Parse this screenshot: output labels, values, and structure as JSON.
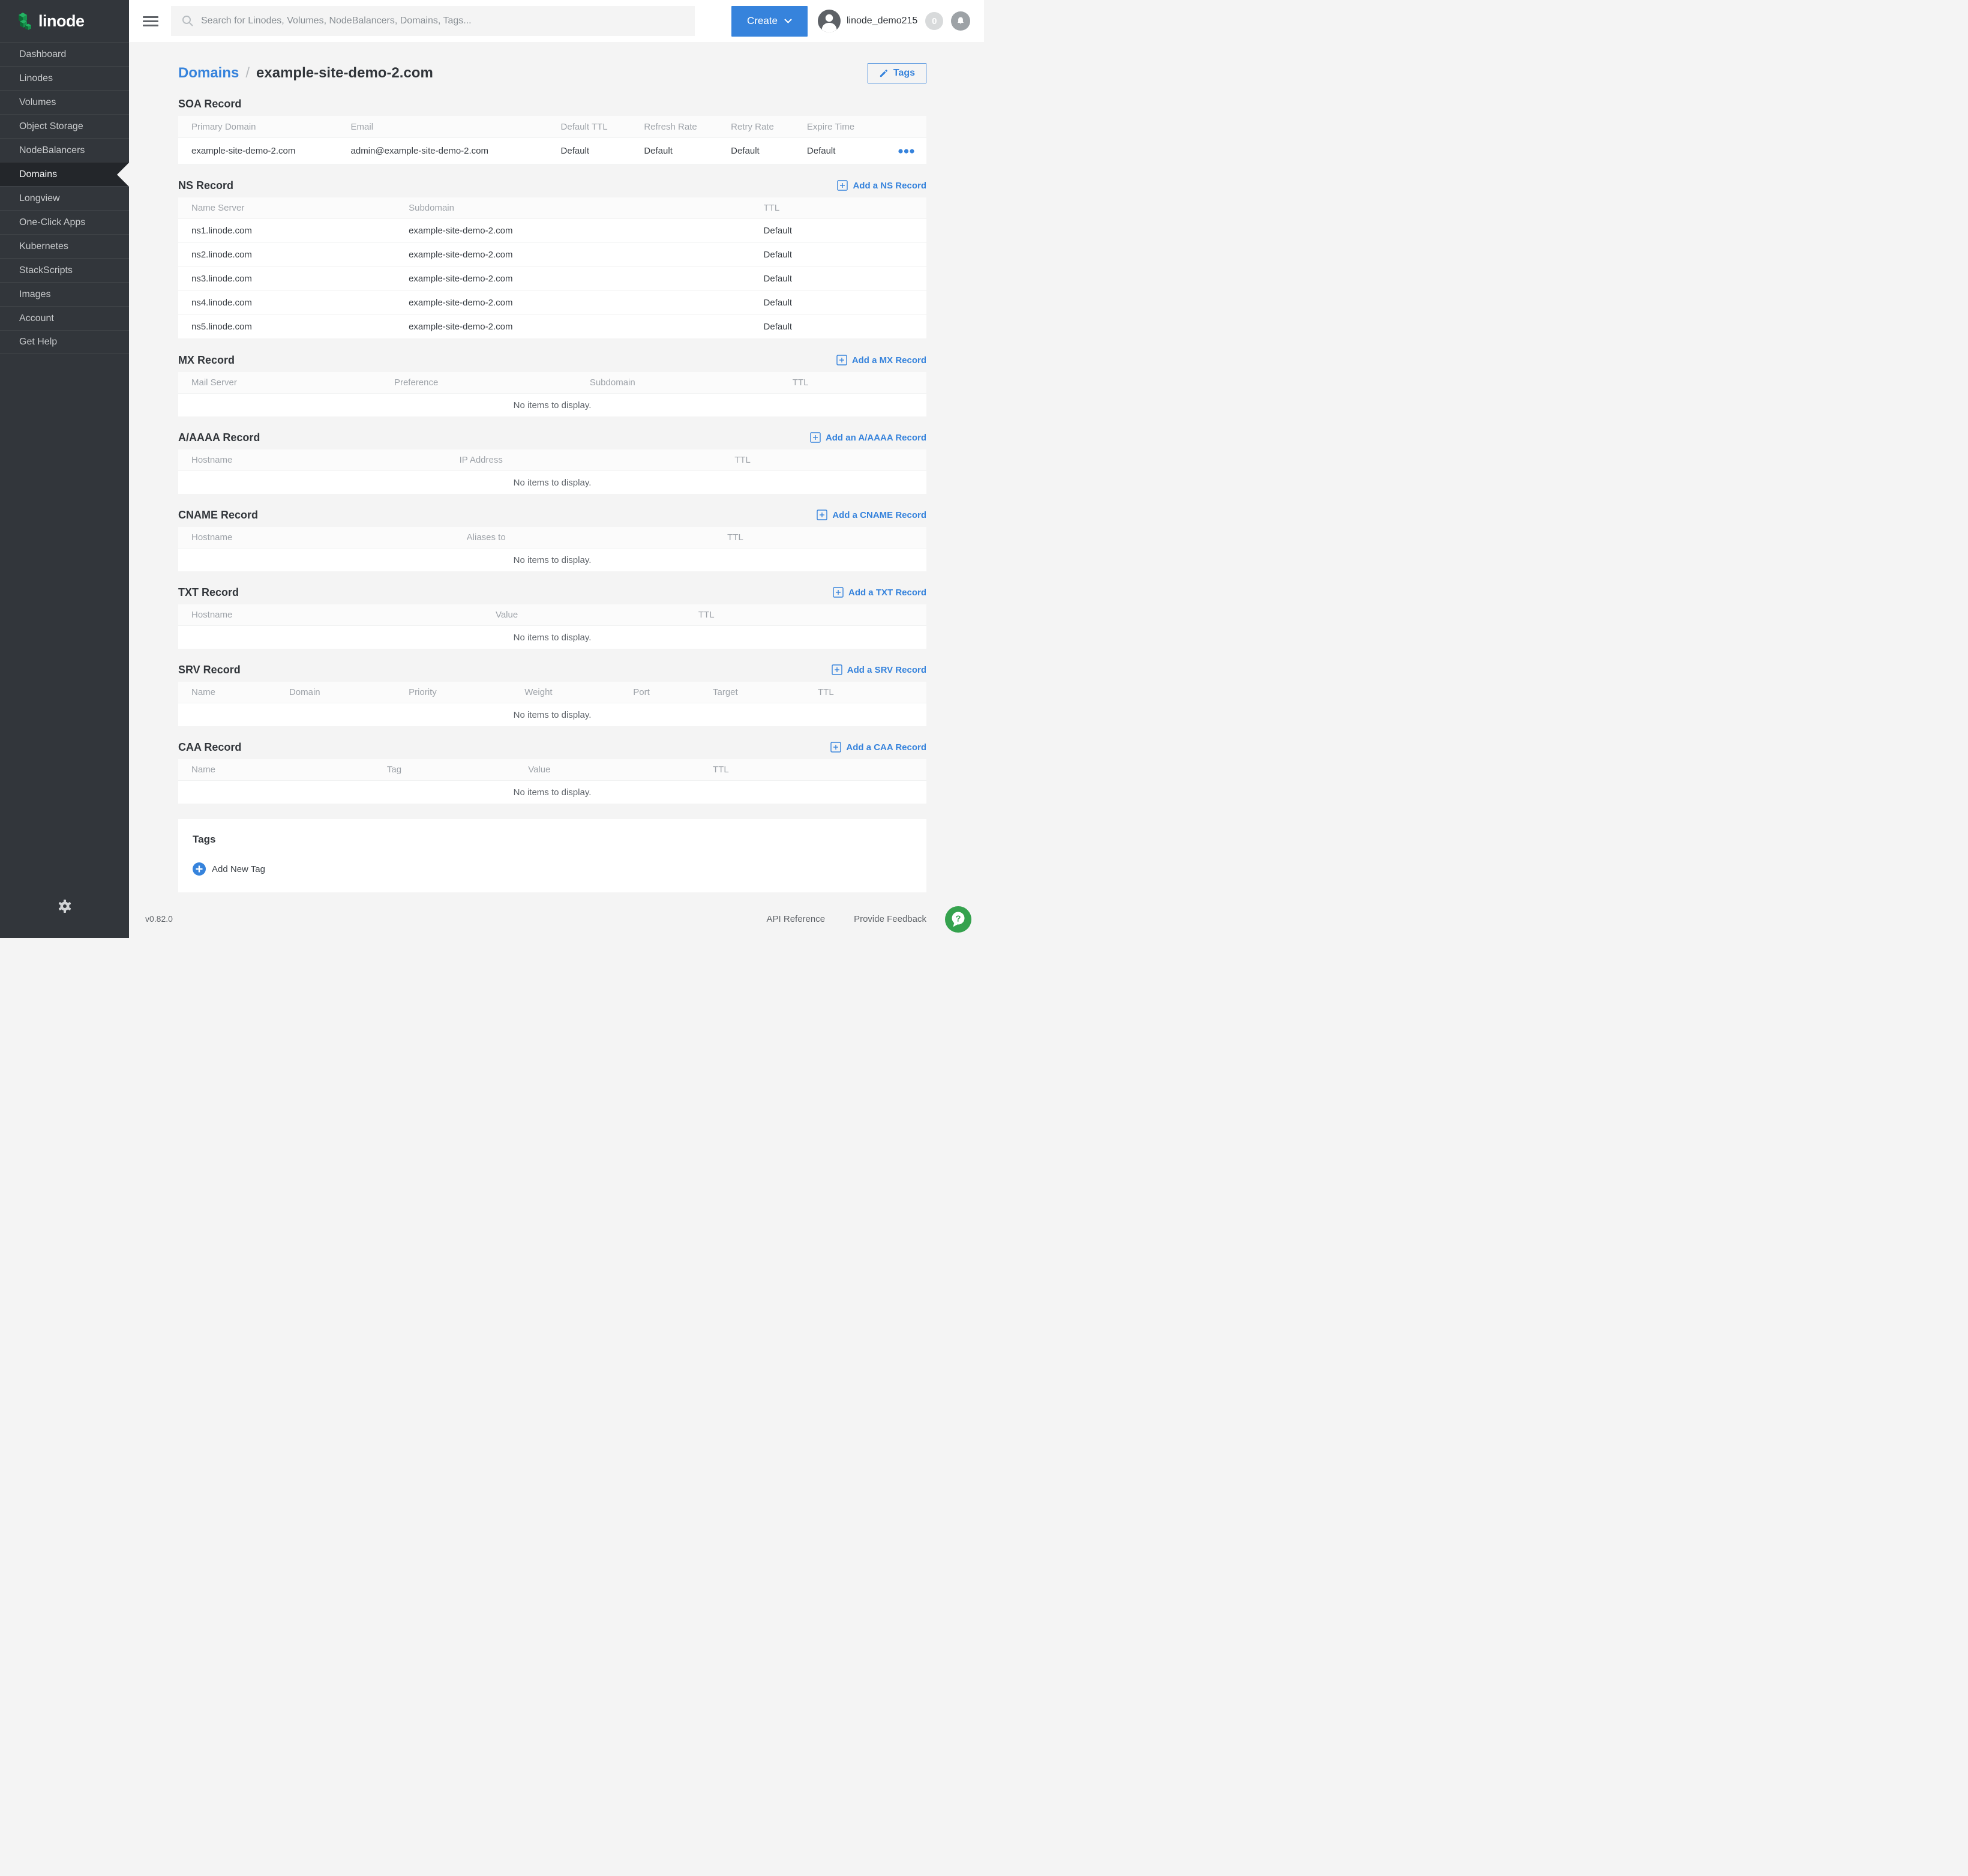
{
  "colors": {
    "accent_blue": "#3683dc",
    "sidebar_bg": "#32363b",
    "page_bg": "#f4f4f4",
    "help_green": "#35a24e",
    "logo_green": "#1cb35c"
  },
  "sidebar": {
    "logo_text": "linode",
    "items": [
      {
        "slug": "dashboard",
        "label": "Dashboard",
        "active": false
      },
      {
        "slug": "linodes",
        "label": "Linodes",
        "active": false
      },
      {
        "slug": "volumes",
        "label": "Volumes",
        "active": false
      },
      {
        "slug": "object-storage",
        "label": "Object Storage",
        "active": false
      },
      {
        "slug": "nodebalancers",
        "label": "NodeBalancers",
        "active": false
      },
      {
        "slug": "domains",
        "label": "Domains",
        "active": true
      },
      {
        "slug": "longview",
        "label": "Longview",
        "active": false
      },
      {
        "slug": "one-click-apps",
        "label": "One-Click Apps",
        "active": false
      },
      {
        "slug": "kubernetes",
        "label": "Kubernetes",
        "active": false
      },
      {
        "slug": "stackscripts",
        "label": "StackScripts",
        "active": false
      },
      {
        "slug": "images",
        "label": "Images",
        "active": false
      },
      {
        "slug": "account",
        "label": "Account",
        "active": false
      },
      {
        "slug": "get-help",
        "label": "Get Help",
        "active": false
      }
    ]
  },
  "topbar": {
    "search_placeholder": "Search for Linodes, Volumes, NodeBalancers, Domains, Tags...",
    "create_label": "Create",
    "username": "linode_demo215",
    "notification_count": "0"
  },
  "breadcrumb": {
    "section": "Domains",
    "separator": "/",
    "current": "example-site-demo-2.com"
  },
  "page_actions": {
    "tags_button_label": "Tags"
  },
  "sections": [
    {
      "id": "soa",
      "title": "SOA Record",
      "add_label": null,
      "has_action_menu": true,
      "columns": [
        "Primary Domain",
        "Email",
        "Default TTL",
        "Refresh Rate",
        "Retry Rate",
        "Expire Time"
      ],
      "rows": [
        [
          "example-site-demo-2.com",
          "admin@example-site-demo-2.com",
          "Default",
          "Default",
          "Default",
          "Default"
        ]
      ]
    },
    {
      "id": "ns",
      "title": "NS Record",
      "add_label": "Add a NS Record",
      "has_action_menu": false,
      "columns": [
        "Name Server",
        "Subdomain",
        "TTL"
      ],
      "rows": [
        [
          "ns1.linode.com",
          "example-site-demo-2.com",
          "Default"
        ],
        [
          "ns2.linode.com",
          "example-site-demo-2.com",
          "Default"
        ],
        [
          "ns3.linode.com",
          "example-site-demo-2.com",
          "Default"
        ],
        [
          "ns4.linode.com",
          "example-site-demo-2.com",
          "Default"
        ],
        [
          "ns5.linode.com",
          "example-site-demo-2.com",
          "Default"
        ]
      ]
    },
    {
      "id": "mx",
      "title": "MX Record",
      "add_label": "Add a MX Record",
      "has_action_menu": false,
      "columns": [
        "Mail Server",
        "Preference",
        "Subdomain",
        "TTL"
      ],
      "rows": [],
      "empty_text": "No items to display."
    },
    {
      "id": "aaaa",
      "title": "A/AAAA Record",
      "add_label": "Add an A/AAAA Record",
      "has_action_menu": false,
      "columns": [
        "Hostname",
        "IP Address",
        "TTL"
      ],
      "rows": [],
      "empty_text": "No items to display."
    },
    {
      "id": "cname",
      "title": "CNAME Record",
      "add_label": "Add a CNAME Record",
      "has_action_menu": false,
      "columns": [
        "Hostname",
        "Aliases to",
        "TTL"
      ],
      "rows": [],
      "empty_text": "No items to display."
    },
    {
      "id": "txt",
      "title": "TXT Record",
      "add_label": "Add a TXT Record",
      "has_action_menu": false,
      "columns": [
        "Hostname",
        "Value",
        "TTL"
      ],
      "rows": [],
      "empty_text": "No items to display."
    },
    {
      "id": "srv",
      "title": "SRV Record",
      "add_label": "Add a SRV Record",
      "has_action_menu": false,
      "columns": [
        "Name",
        "Domain",
        "Priority",
        "Weight",
        "Port",
        "Target",
        "TTL"
      ],
      "rows": [],
      "empty_text": "No items to display."
    },
    {
      "id": "caa",
      "title": "CAA Record",
      "add_label": "Add a CAA Record",
      "has_action_menu": false,
      "columns": [
        "Name",
        "Tag",
        "Value",
        "TTL"
      ],
      "rows": [],
      "empty_text": "No items to display."
    }
  ],
  "tags_panel": {
    "title": "Tags",
    "add_label": "Add New Tag"
  },
  "footer": {
    "version": "v0.82.0",
    "links": [
      {
        "slug": "api-reference",
        "label": "API Reference"
      },
      {
        "slug": "provide-feedback",
        "label": "Provide Feedback"
      }
    ]
  }
}
